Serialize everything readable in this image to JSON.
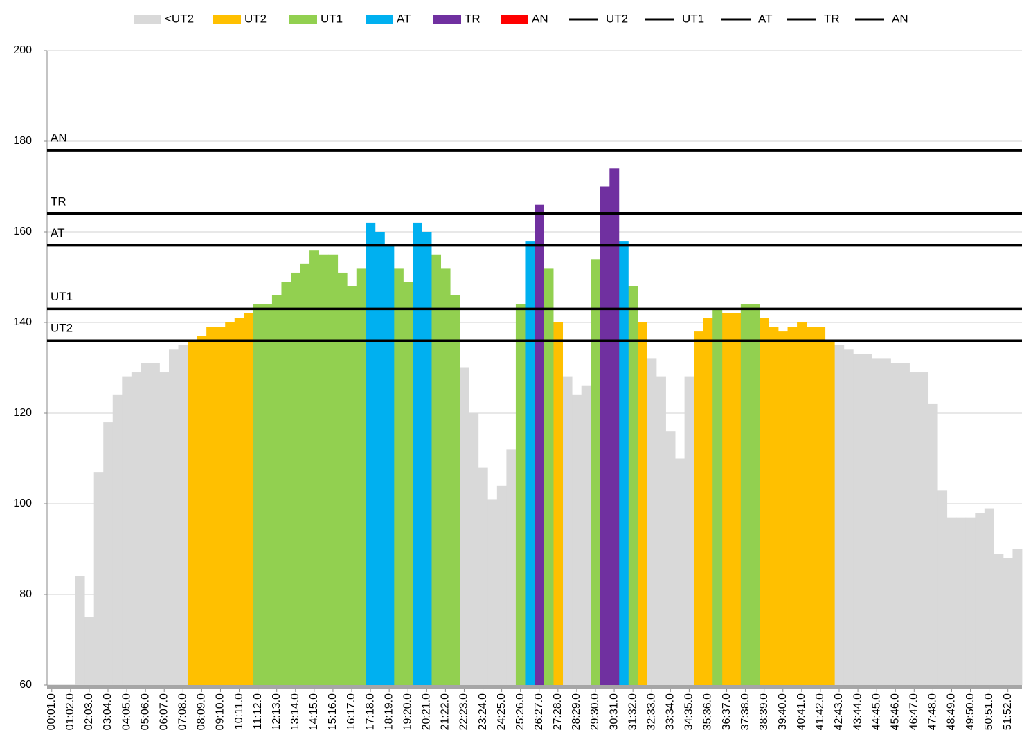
{
  "chart_data": {
    "type": "bar",
    "categories": [
      "00:01.0",
      null,
      "01:02.0",
      null,
      "02:03.0",
      null,
      "03:04.0",
      null,
      "04:05.0",
      null,
      "05:06.0",
      null,
      "06:07.0",
      null,
      "07:08.0",
      null,
      "08:09.0",
      null,
      "09:10.0",
      null,
      "10:11.0",
      null,
      "11:12.0",
      null,
      "12:13.0",
      null,
      "13:14.0",
      null,
      "14:15.0",
      null,
      "15:16.0",
      null,
      "16:17.0",
      null,
      "17:18.0",
      null,
      "18:19.0",
      null,
      "19:20.0",
      null,
      "20:21.0",
      null,
      "21:22.0",
      null,
      "22:23.0",
      null,
      "23:24.0",
      null,
      "24:25.0",
      null,
      "25:26.0",
      null,
      "26:27.0",
      null,
      "27:28.0",
      null,
      "28:29.0",
      null,
      "29:30.0",
      null,
      "30:31.0",
      null,
      "31:32.0",
      null,
      "32:33.0",
      null,
      "33:34.0",
      null,
      "34:35.0",
      null,
      "35:36.0",
      null,
      "36:37.0",
      null,
      "37:38.0",
      null,
      "38:39.0",
      null,
      "39:40.0",
      null,
      "40:41.0",
      null,
      "41:42.0",
      null,
      "42:43.0",
      null,
      "43:44.0",
      null,
      "44:45.0",
      null,
      "45:46.0",
      null,
      "46:47.0",
      null,
      "47:48.0",
      null,
      "48:49.0",
      null,
      "49:50.0",
      null,
      "50:51.0",
      null,
      "51:52.0",
      null
    ],
    "series": [
      {
        "name": "<UT2",
        "color": "#d9d9d9",
        "values": [
          null,
          null,
          null,
          84,
          75,
          107,
          118,
          124,
          128,
          129,
          131,
          131,
          129,
          134,
          135,
          null,
          null,
          null,
          null,
          null,
          null,
          null,
          null,
          null,
          null,
          null,
          null,
          null,
          null,
          null,
          null,
          null,
          null,
          null,
          null,
          null,
          null,
          null,
          null,
          null,
          null,
          null,
          null,
          null,
          130,
          120,
          108,
          101,
          104,
          112,
          null,
          null,
          null,
          null,
          null,
          128,
          124,
          126,
          null,
          null,
          null,
          null,
          null,
          null,
          132,
          128,
          116,
          110,
          128,
          null,
          null,
          null,
          null,
          null,
          null,
          null,
          null,
          null,
          null,
          null,
          null,
          null,
          null,
          null,
          135,
          134,
          133,
          133,
          132,
          132,
          131,
          131,
          129,
          129,
          122,
          103,
          97,
          97,
          97,
          98,
          99,
          89,
          88,
          90
        ]
      },
      {
        "name": "UT2",
        "color": "#ffc000",
        "values": [
          null,
          null,
          null,
          null,
          null,
          null,
          null,
          null,
          null,
          null,
          null,
          null,
          null,
          null,
          null,
          136,
          137,
          139,
          139,
          140,
          141,
          142,
          null,
          null,
          null,
          null,
          null,
          null,
          null,
          null,
          null,
          null,
          null,
          null,
          null,
          null,
          null,
          null,
          null,
          null,
          null,
          null,
          null,
          null,
          null,
          null,
          null,
          null,
          null,
          null,
          null,
          null,
          null,
          null,
          140,
          null,
          null,
          null,
          null,
          null,
          null,
          null,
          null,
          140,
          null,
          null,
          null,
          null,
          null,
          138,
          141,
          null,
          142,
          142,
          null,
          null,
          141,
          139,
          138,
          139,
          140,
          139,
          139,
          136,
          null,
          null,
          null,
          null,
          null,
          null,
          null,
          null,
          null,
          null,
          null,
          null,
          null,
          null,
          null,
          null,
          null,
          null,
          null,
          null
        ]
      },
      {
        "name": "UT1",
        "color": "#92d050",
        "values": [
          null,
          null,
          null,
          null,
          null,
          null,
          null,
          null,
          null,
          null,
          null,
          null,
          null,
          null,
          null,
          null,
          null,
          null,
          null,
          null,
          null,
          null,
          144,
          144,
          146,
          149,
          151,
          153,
          156,
          155,
          155,
          151,
          148,
          152,
          null,
          null,
          null,
          152,
          149,
          null,
          null,
          155,
          152,
          146,
          null,
          null,
          null,
          null,
          null,
          null,
          144,
          null,
          null,
          152,
          null,
          null,
          null,
          null,
          154,
          null,
          null,
          null,
          148,
          null,
          null,
          null,
          null,
          null,
          null,
          null,
          null,
          143,
          null,
          null,
          144,
          144,
          null,
          null,
          null,
          null,
          null,
          null,
          null,
          null,
          null,
          null,
          null,
          null,
          null,
          null,
          null,
          null,
          null,
          null,
          null,
          null,
          null,
          null,
          null,
          null,
          null,
          null,
          null,
          null
        ]
      },
      {
        "name": "AT",
        "color": "#00b0f0",
        "values": [
          null,
          null,
          null,
          null,
          null,
          null,
          null,
          null,
          null,
          null,
          null,
          null,
          null,
          null,
          null,
          null,
          null,
          null,
          null,
          null,
          null,
          null,
          null,
          null,
          null,
          null,
          null,
          null,
          null,
          null,
          null,
          null,
          null,
          null,
          162,
          160,
          157,
          null,
          null,
          162,
          160,
          null,
          null,
          null,
          null,
          null,
          null,
          null,
          null,
          null,
          null,
          158,
          null,
          null,
          null,
          null,
          null,
          null,
          null,
          null,
          null,
          158,
          null,
          null,
          null,
          null,
          null,
          null,
          null,
          null,
          null,
          null,
          null,
          null,
          null,
          null,
          null,
          null,
          null,
          null,
          null,
          null,
          null,
          null,
          null,
          null,
          null,
          null,
          null,
          null,
          null,
          null,
          null,
          null,
          null,
          null,
          null,
          null,
          null,
          null,
          null,
          null,
          null,
          null
        ]
      },
      {
        "name": "TR",
        "color": "#7030a0",
        "values": [
          null,
          null,
          null,
          null,
          null,
          null,
          null,
          null,
          null,
          null,
          null,
          null,
          null,
          null,
          null,
          null,
          null,
          null,
          null,
          null,
          null,
          null,
          null,
          null,
          null,
          null,
          null,
          null,
          null,
          null,
          null,
          null,
          null,
          null,
          null,
          null,
          null,
          null,
          null,
          null,
          null,
          null,
          null,
          null,
          null,
          null,
          null,
          null,
          null,
          null,
          null,
          null,
          166,
          null,
          null,
          null,
          null,
          null,
          null,
          170,
          174,
          null,
          null,
          null,
          null,
          null,
          null,
          null,
          null,
          null,
          null,
          null,
          null,
          null,
          null,
          null,
          null,
          null,
          null,
          null,
          null,
          null,
          null,
          null,
          null,
          null,
          null,
          null,
          null,
          null,
          null,
          null,
          null,
          null,
          null,
          null,
          null,
          null,
          null,
          null,
          null,
          null,
          null,
          null
        ]
      },
      {
        "name": "AN",
        "color": "#ff0000",
        "values": [
          null,
          null,
          null,
          null,
          null,
          null,
          null,
          null,
          null,
          null,
          null,
          null,
          null,
          null,
          null,
          null,
          null,
          null,
          null,
          null,
          null,
          null,
          null,
          null,
          null,
          null,
          null,
          null,
          null,
          null,
          null,
          null,
          null,
          null,
          null,
          null,
          null,
          null,
          null,
          null,
          null,
          null,
          null,
          null,
          null,
          null,
          null,
          null,
          null,
          null,
          null,
          null,
          null,
          null,
          null,
          null,
          null,
          null,
          null,
          null,
          null,
          null,
          null,
          null,
          null,
          null,
          null,
          null,
          null,
          null,
          null,
          null,
          null,
          null,
          null,
          null,
          null,
          null,
          null,
          null,
          null,
          null,
          null,
          null,
          null,
          null,
          null,
          null,
          null,
          null,
          null,
          null,
          null,
          null,
          null,
          null,
          null,
          null,
          null,
          null,
          null,
          null,
          null,
          null
        ]
      }
    ],
    "reference_lines": [
      {
        "name": "UT2",
        "color": "#000000",
        "value": 136
      },
      {
        "name": "UT1",
        "color": "#000000",
        "value": 143
      },
      {
        "name": "AT",
        "color": "#000000",
        "value": 157
      },
      {
        "name": "TR",
        "color": "#000000",
        "value": 164
      },
      {
        "name": "AN",
        "color": "#000000",
        "value": 178
      }
    ],
    "ylim": [
      60,
      200
    ],
    "yticks": [
      60,
      80,
      100,
      120,
      140,
      160,
      180,
      200
    ],
    "grid": true,
    "legend": "top"
  }
}
